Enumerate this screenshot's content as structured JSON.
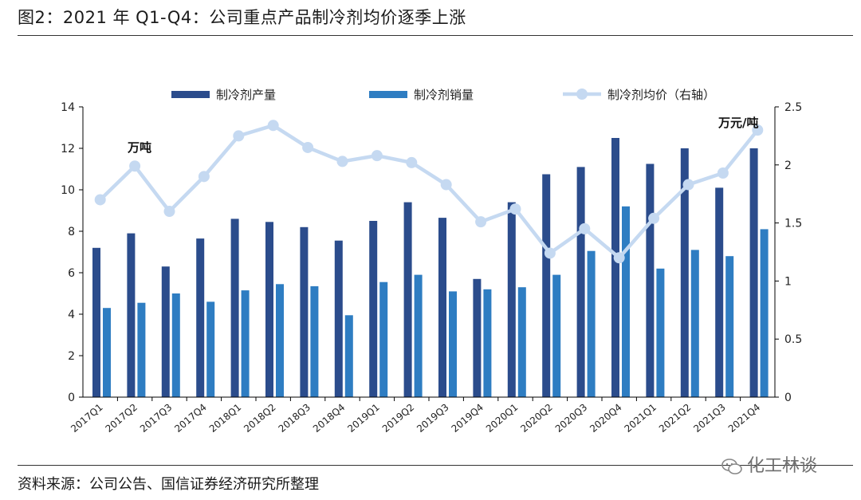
{
  "header": {
    "title": "图2：2021 年 Q1-Q4：公司重点产品制冷剂均价逐季上涨"
  },
  "footer": {
    "source": "资料来源：公司公告、国信证券经济研究所整理"
  },
  "watermark": {
    "text": "化工林谈",
    "icon": "wechat-icon"
  },
  "colors": {
    "production": "#2B4C8C",
    "sales": "#2E7DC2",
    "price": "#C5D9F1",
    "axis": "#000000"
  },
  "chart_data": {
    "type": "bar",
    "categories": [
      "2017Q1",
      "2017Q2",
      "2017Q3",
      "2017Q4",
      "2018Q1",
      "2018Q2",
      "2018Q3",
      "2018Q4",
      "2019Q1",
      "2019Q2",
      "2019Q3",
      "2019Q4",
      "2020Q1",
      "2020Q2",
      "2020Q3",
      "2020Q4",
      "2021Q1",
      "2021Q2",
      "2021Q3",
      "2021Q4"
    ],
    "series": [
      {
        "name": "制冷剂产量",
        "type": "bar",
        "axis": "left",
        "values": [
          7.2,
          7.9,
          6.3,
          7.65,
          8.6,
          8.45,
          8.2,
          7.55,
          8.5,
          9.4,
          8.65,
          5.7,
          9.4,
          10.75,
          11.1,
          12.5,
          11.25,
          12.0,
          10.1,
          12.0
        ]
      },
      {
        "name": "制冷剂销量",
        "type": "bar",
        "axis": "left",
        "values": [
          4.3,
          4.55,
          5.0,
          4.6,
          5.15,
          5.45,
          5.35,
          3.95,
          5.55,
          5.9,
          5.1,
          5.2,
          5.3,
          5.9,
          7.05,
          9.2,
          6.2,
          7.1,
          6.8,
          8.1
        ]
      },
      {
        "name": "制冷剂均价（右轴）",
        "type": "line",
        "axis": "right",
        "values": [
          1.7,
          1.99,
          1.6,
          1.9,
          2.25,
          2.34,
          2.15,
          2.03,
          2.08,
          2.02,
          1.83,
          1.51,
          1.62,
          1.24,
          1.45,
          1.2,
          1.54,
          1.83,
          1.93,
          2.3
        ]
      }
    ],
    "yleft": {
      "min": 0,
      "max": 14,
      "ticks": [
        "0",
        "2",
        "4",
        "6",
        "8",
        "10",
        "12",
        "14"
      ],
      "unit_label": "万吨"
    },
    "yright": {
      "min": 0,
      "max": 2.5,
      "ticks": [
        "0",
        "0.5",
        "1",
        "1.5",
        "2",
        "2.5"
      ],
      "unit_label": "万元/吨"
    },
    "legend_position": "top",
    "grid": false
  }
}
